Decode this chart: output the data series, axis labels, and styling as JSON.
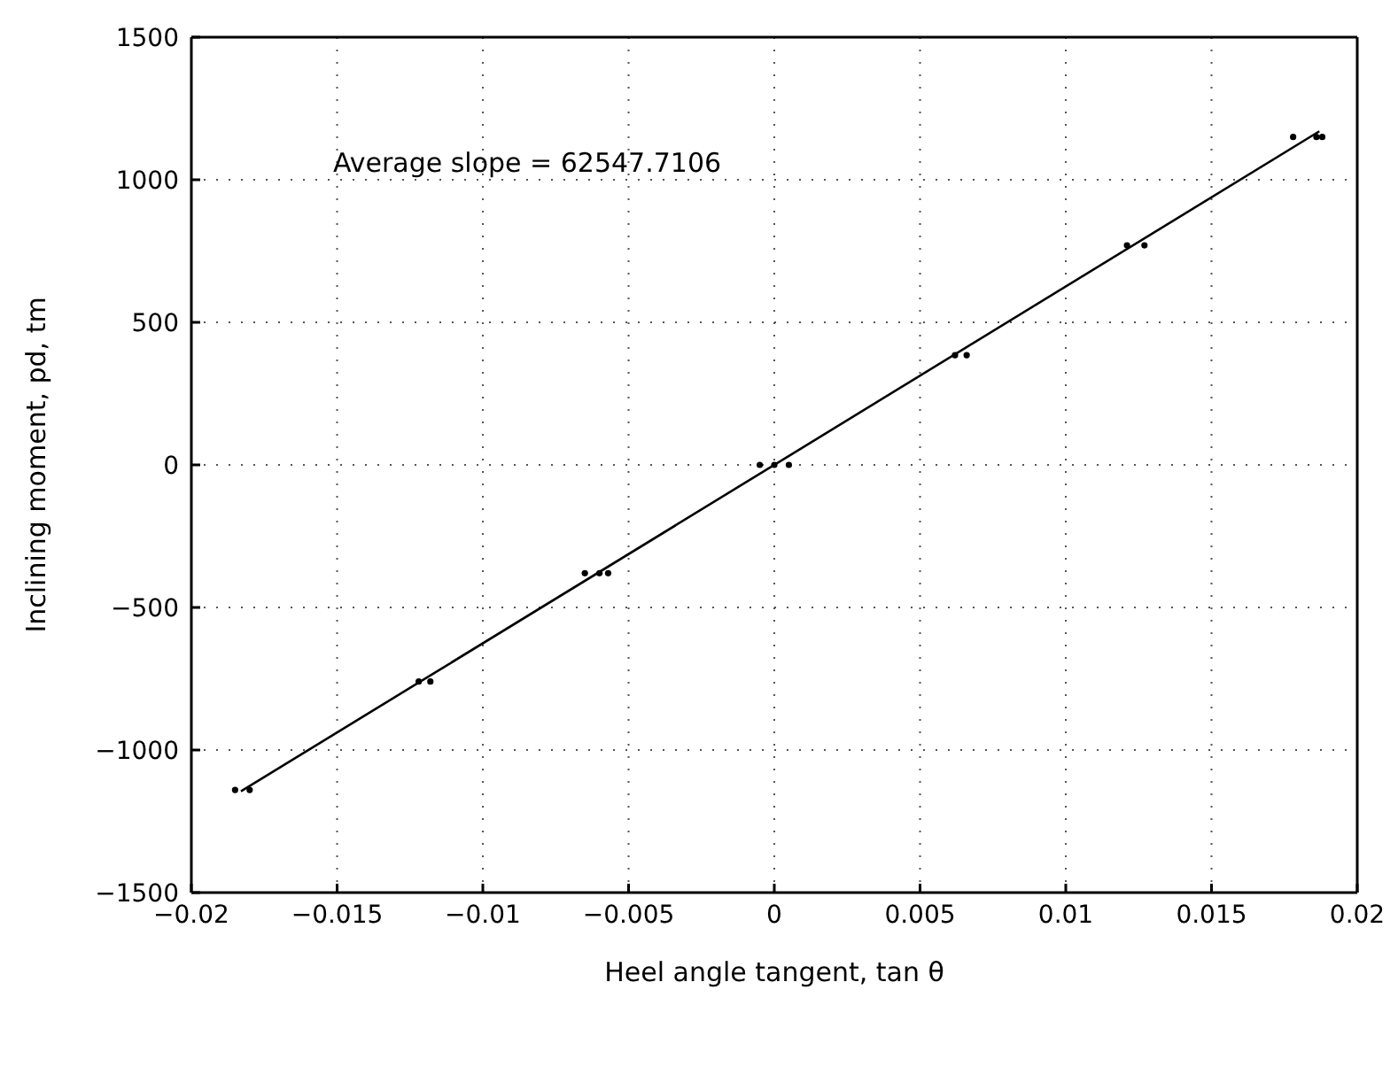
{
  "chart_data": {
    "type": "scatter",
    "xlabel": "Heel angle tangent, tan θ",
    "ylabel": "Inclining moment, pd, tm",
    "annotations": [
      "Average slope = 62547.7106"
    ],
    "xlim": [
      -0.02,
      0.02
    ],
    "xticks": [
      -0.02,
      -0.015,
      -0.01,
      -0.005,
      0,
      0.005,
      0.01,
      0.015,
      0.02
    ],
    "ylim": [
      -1500,
      1500
    ],
    "yticks": [
      -1500,
      -1000,
      -500,
      0,
      500,
      1000,
      1500
    ],
    "grid": true,
    "marker": "circle",
    "series": [
      {
        "color": "#000000",
        "x": [
          -0.0185,
          -0.018,
          -0.0122,
          -0.0118,
          -0.0065,
          -0.006,
          -0.0057,
          -0.0005,
          0,
          0.0005,
          0.0062,
          0.0066,
          0.0121,
          0.0127,
          0.0178,
          0.0186,
          0.0188
        ],
        "values": [
          -1140,
          -1140,
          -760,
          -760,
          -380,
          -380,
          -380,
          0,
          0,
          0,
          385,
          385,
          770,
          770,
          1150,
          1150,
          1150
        ]
      },
      {
        "type": "line",
        "marker": "none",
        "color": "#000000",
        "x": [
          -0.0183,
          0.0187
        ],
        "values": [
          -1145,
          1170
        ]
      }
    ]
  }
}
